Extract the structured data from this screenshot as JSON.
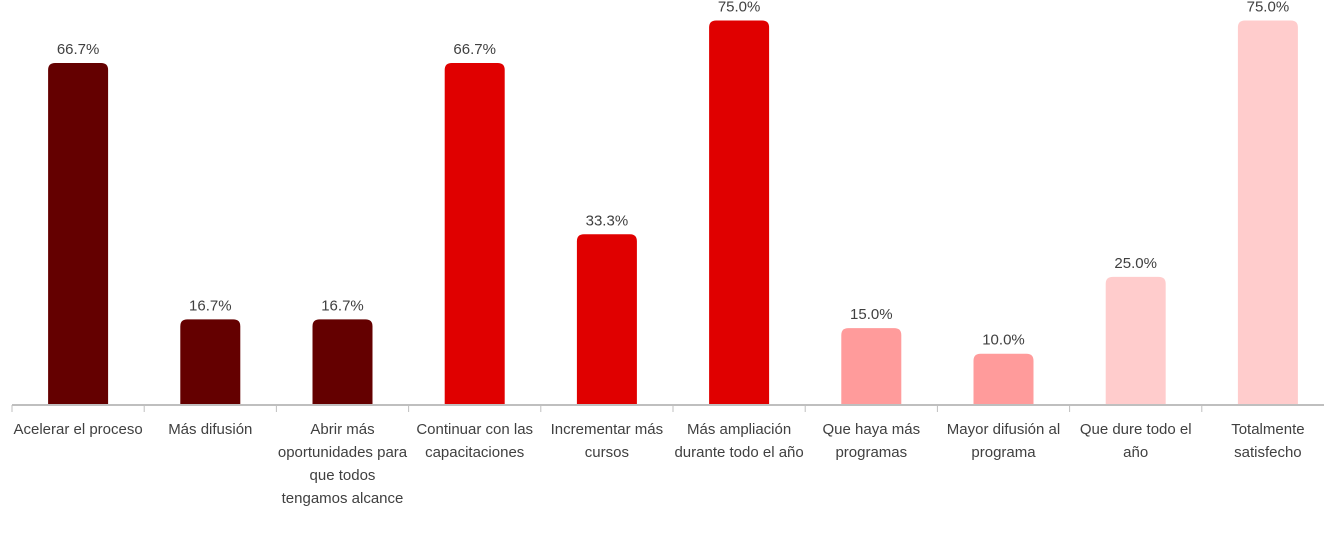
{
  "chart_data": {
    "type": "bar",
    "categories": [
      "Acelerar el proceso",
      "Más difusión",
      "Abrir más oportunidades para que todos tengamos alcance",
      "Continuar con las capacitaciones",
      "Incrementar más cursos",
      "Más ampliación durante todo el año",
      "Que haya más programas",
      "Mayor difusión al programa",
      "Que dure todo el año",
      "Totalmente satisfecho"
    ],
    "values": [
      66.7,
      16.7,
      16.7,
      66.7,
      33.3,
      75.0,
      15.0,
      10.0,
      25.0,
      75.0
    ],
    "value_labels": [
      "66.7%",
      "16.7%",
      "16.7%",
      "66.7%",
      "33.3%",
      "75.0%",
      "15.0%",
      "10.0%",
      "25.0%",
      "75.0%"
    ],
    "colors": [
      "#640000",
      "#640000",
      "#640000",
      "#e00000",
      "#e00000",
      "#e00000",
      "#ff9b9b",
      "#ff9b9b",
      "#ffcccc",
      "#ffcccc"
    ],
    "ylim": [
      0,
      79
    ]
  }
}
